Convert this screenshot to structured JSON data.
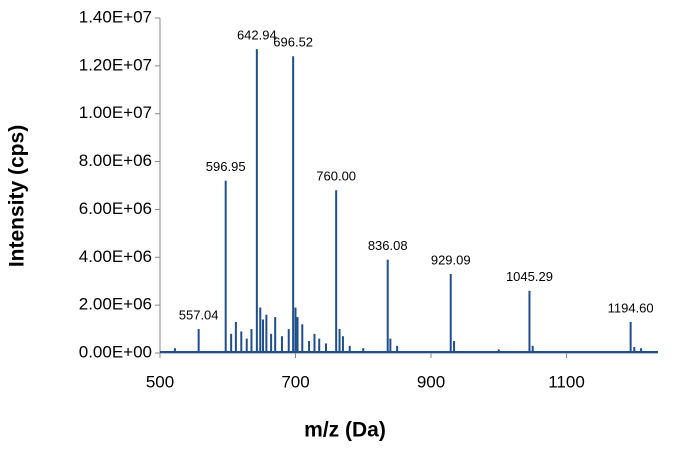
{
  "chart_data": {
    "type": "stick",
    "x_title": "m/z (Da)",
    "y_title": "Intensity (cps)",
    "color": "#1f4e8c",
    "x": [
      557.04,
      596.95,
      642.94,
      696.52,
      760.0,
      836.08,
      929.09,
      1045.29,
      1194.6,
      522,
      605,
      612,
      620,
      628,
      635,
      648,
      652,
      657,
      664,
      670,
      680,
      690,
      700,
      703,
      710,
      720,
      728,
      735,
      745,
      765,
      770,
      780,
      800,
      840,
      850,
      934,
      1000,
      1050,
      1200,
      1210
    ],
    "values": [
      1000000,
      7200000,
      12700000,
      12400000,
      6800000,
      3900000,
      3300000,
      2600000,
      1300000,
      200000,
      800000,
      1300000,
      900000,
      600000,
      1000000,
      1900000,
      1400000,
      1600000,
      800000,
      1500000,
      700000,
      1000000,
      1900000,
      1500000,
      1200000,
      500000,
      800000,
      600000,
      400000,
      1000000,
      700000,
      300000,
      200000,
      600000,
      300000,
      500000,
      150000,
      300000,
      250000,
      200000
    ],
    "x_labels": [
      "557.04",
      "596.95",
      "642.94",
      "696.52",
      "760.00",
      "836.08",
      "929.09",
      "1045.29",
      "1194.60",
      null,
      null,
      null,
      null,
      null,
      null,
      null,
      null,
      null,
      null,
      null,
      null,
      null,
      null,
      null,
      null,
      null,
      null,
      null,
      null,
      null,
      null,
      null,
      null,
      null,
      null,
      null,
      null,
      null,
      null,
      null
    ],
    "xlim": [
      500,
      1235
    ],
    "xticks": [
      500,
      700,
      900,
      1100
    ],
    "ylim": [
      0,
      14000000
    ],
    "yticks": [
      {
        "value": 0,
        "label": "0.00E+00"
      },
      {
        "value": 2000000,
        "label": "2.00E+06"
      },
      {
        "value": 4000000,
        "label": "4.00E+06"
      },
      {
        "value": 6000000,
        "label": "6.00E+06"
      },
      {
        "value": 8000000,
        "label": "8.00E+06"
      },
      {
        "value": 10000000,
        "label": "1.00E+07"
      },
      {
        "value": 12000000,
        "label": "1.20E+07"
      },
      {
        "value": 14000000,
        "label": "1.40E+07"
      }
    ]
  }
}
